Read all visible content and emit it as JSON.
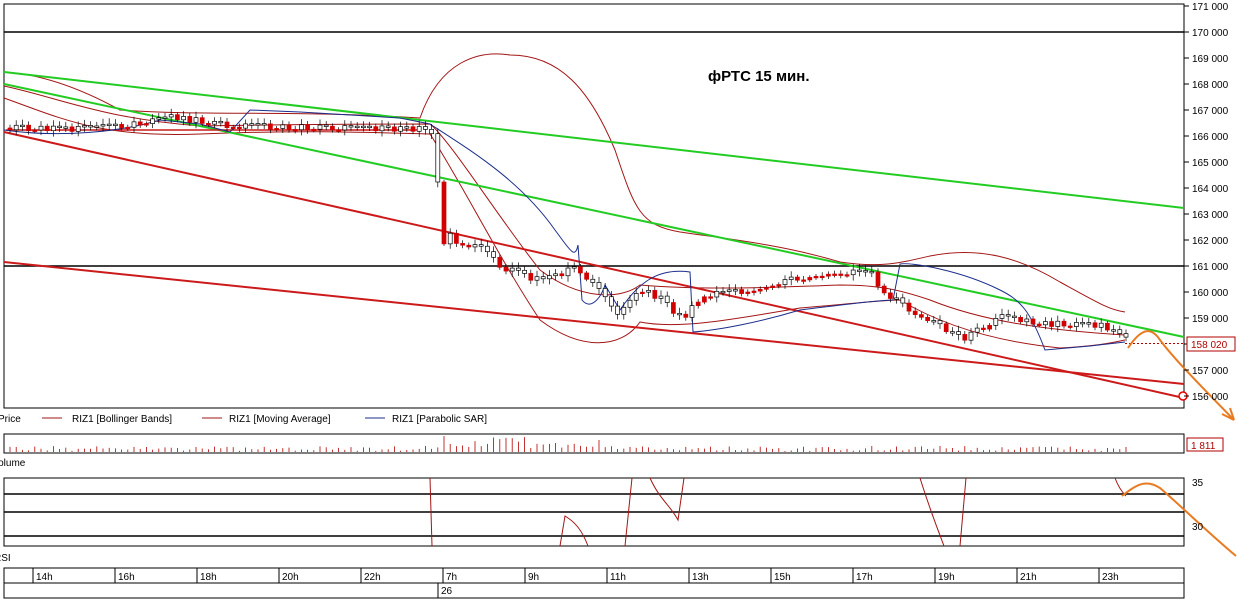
{
  "price_panel": {
    "label": "Price",
    "annotation": "фРТС   15 мин.",
    "current_price_label": "158 020",
    "legend": [
      {
        "label": "RIZ1 [Bollinger Bands]",
        "color": "#a31515"
      },
      {
        "label": "RIZ1 [Moving Average]",
        "color": "#a31515"
      },
      {
        "label": "RIZ1 [Parabolic SAR]",
        "color": "#1c2e8c"
      }
    ]
  },
  "volume_panel": {
    "label": "Volume",
    "value_label": "1 811"
  },
  "rsi_panel": {
    "label": "RSI",
    "tick_labels": [
      "35",
      "30"
    ]
  },
  "colors": {
    "up": "#ffffff",
    "down": "#d30000",
    "band": "#a31515",
    "sar": "#1c2e8c",
    "trend_green": "#22cc22",
    "trend_red": "#cc1a1a",
    "forecast": "#e87b22"
  },
  "chart_data": {
    "type": "candlestick",
    "title": "фРТС   15 мин.",
    "y_axis": {
      "range": [
        156000,
        171000
      ],
      "tick_labels": [
        "156 000",
        "157 000",
        "158 000",
        "159 000",
        "160 000",
        "161 000",
        "162 000",
        "163 000",
        "164 000",
        "165 000",
        "166 000",
        "167 000",
        "168 000",
        "169 000",
        "170 000",
        "171 000"
      ]
    },
    "x_axis": {
      "tick_labels": [
        "14h",
        "16h",
        "18h",
        "20h",
        "22h",
        "7h",
        "9h",
        "11h",
        "13h",
        "15h",
        "17h",
        "19h",
        "21h",
        "23h"
      ],
      "date_label": "26"
    },
    "horizontal_levels": [
      170000,
      161000
    ],
    "last_price": 158020,
    "rsi_levels": [
      35,
      30
    ]
  }
}
